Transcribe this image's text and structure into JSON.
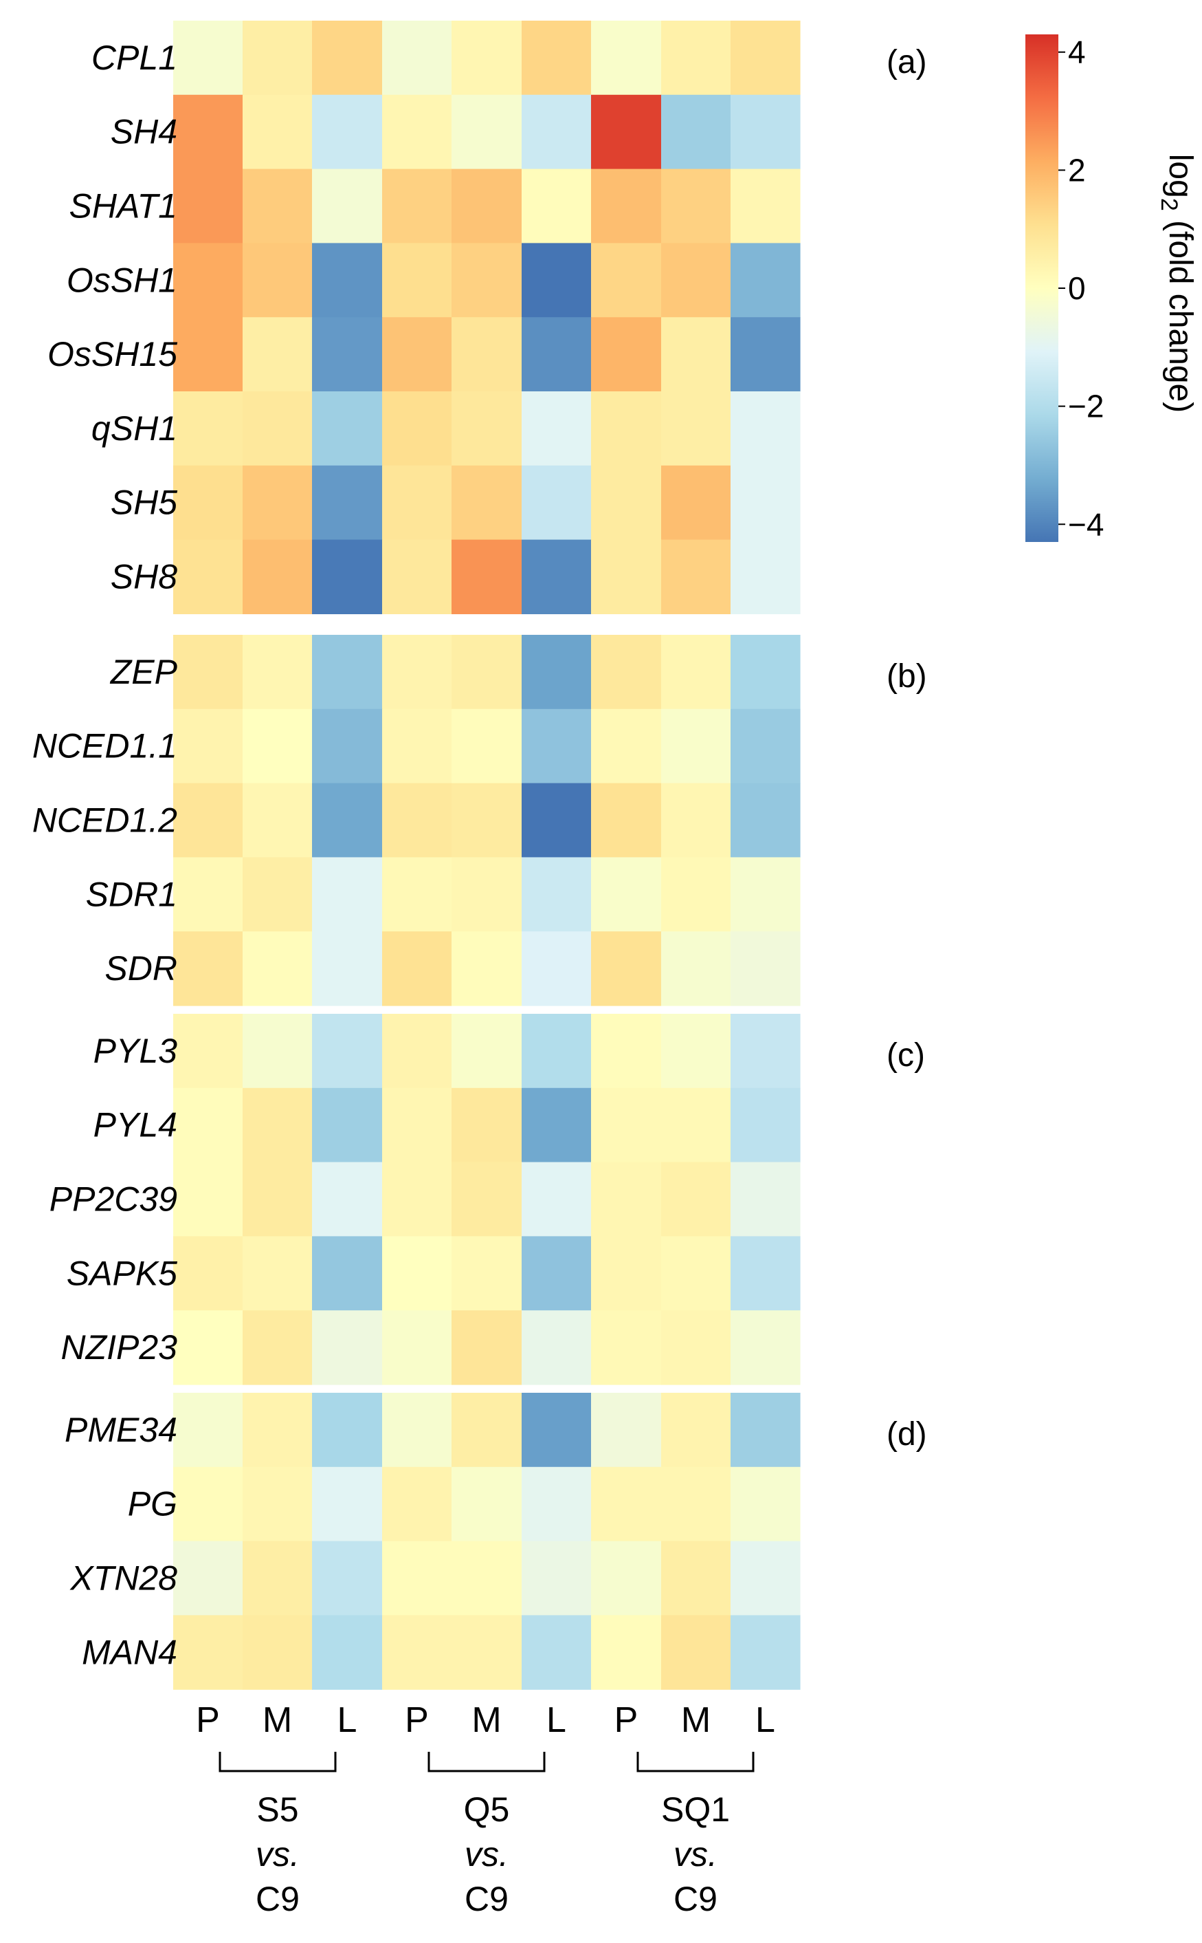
{
  "chart_data": {
    "type": "heatmap",
    "title": "",
    "columns": [
      "P",
      "M",
      "L",
      "P",
      "M",
      "L",
      "P",
      "M",
      "L"
    ],
    "groups": [
      {
        "label": "S5",
        "vs": "vs.",
        "ref": "C9"
      },
      {
        "label": "Q5",
        "vs": "vs.",
        "ref": "C9"
      },
      {
        "label": "SQ1",
        "vs": "vs.",
        "ref": "C9"
      }
    ],
    "panels": [
      {
        "label": "(a)",
        "rows": [
          {
            "gene": "CPL1",
            "values": [
              -0.3,
              0.6,
              1.3,
              -0.4,
              0.3,
              1.3,
              -0.2,
              0.5,
              1.0
            ]
          },
          {
            "gene": "SH4",
            "values": [
              2.5,
              0.5,
              -1.5,
              0.3,
              -0.3,
              -1.5,
              4.0,
              -2.4,
              -1.8
            ]
          },
          {
            "gene": "SHAT1",
            "values": [
              2.5,
              1.5,
              -0.4,
              1.4,
              1.7,
              0.1,
              1.8,
              1.4,
              0.3
            ]
          },
          {
            "gene": "OsSH1",
            "values": [
              2.2,
              1.6,
              -3.7,
              1.1,
              1.4,
              -4.3,
              1.3,
              1.6,
              -3.0
            ]
          },
          {
            "gene": "OsSH15",
            "values": [
              2.2,
              0.6,
              -3.6,
              1.7,
              0.9,
              -3.8,
              2.0,
              0.6,
              -3.7
            ]
          },
          {
            "gene": "qSH1",
            "values": [
              0.7,
              0.8,
              -2.4,
              1.1,
              0.8,
              -1.0,
              0.7,
              0.6,
              -1.0
            ]
          },
          {
            "gene": "SH5",
            "values": [
              1.1,
              1.6,
              -3.6,
              0.9,
              1.4,
              -1.6,
              0.7,
              1.8,
              -1.0
            ]
          },
          {
            "gene": "SH8",
            "values": [
              1.0,
              1.8,
              -4.2,
              0.8,
              2.6,
              -3.9,
              0.7,
              1.4,
              -1.0
            ]
          }
        ]
      },
      {
        "label": "(b)",
        "rows": [
          {
            "gene": "ZEP",
            "values": [
              0.8,
              0.3,
              -2.6,
              0.4,
              0.6,
              -3.4,
              0.8,
              0.3,
              -2.2
            ]
          },
          {
            "gene": "NCED1.1",
            "values": [
              0.4,
              0.0,
              -2.9,
              0.3,
              0.1,
              -2.7,
              0.2,
              -0.2,
              -2.5
            ]
          },
          {
            "gene": "NCED1.2",
            "values": [
              0.9,
              0.3,
              -3.3,
              0.8,
              0.7,
              -4.3,
              1.0,
              0.3,
              -2.6
            ]
          },
          {
            "gene": "SDR1",
            "values": [
              0.2,
              0.6,
              -1.0,
              0.2,
              0.3,
              -1.5,
              -0.2,
              0.2,
              -0.3
            ]
          },
          {
            "gene": "SDR",
            "values": [
              0.9,
              0.1,
              -1.0,
              1.0,
              0.1,
              -1.1,
              1.0,
              -0.3,
              -0.5
            ]
          }
        ]
      },
      {
        "label": "(c)",
        "rows": [
          {
            "gene": "PYL3",
            "values": [
              0.3,
              -0.3,
              -1.7,
              0.4,
              -0.2,
              -2.0,
              0.1,
              -0.2,
              -1.6
            ]
          },
          {
            "gene": "PYL4",
            "values": [
              0.1,
              0.7,
              -2.4,
              0.3,
              0.8,
              -3.3,
              0.2,
              0.2,
              -1.8
            ]
          },
          {
            "gene": "PP2C39",
            "values": [
              0.1,
              0.7,
              -1.0,
              0.3,
              0.7,
              -1.0,
              0.3,
              0.5,
              -0.8
            ]
          },
          {
            "gene": "SAPK5",
            "values": [
              0.5,
              0.3,
              -2.6,
              0.0,
              0.2,
              -2.7,
              0.3,
              0.2,
              -1.8
            ]
          },
          {
            "gene": "NZIP23",
            "values": [
              0.0,
              0.7,
              -0.6,
              -0.2,
              0.9,
              -0.8,
              0.2,
              0.3,
              -0.4
            ]
          }
        ]
      },
      {
        "label": "(d)",
        "rows": [
          {
            "gene": "PME34",
            "values": [
              -0.3,
              0.4,
              -2.2,
              -0.3,
              0.6,
              -3.5,
              -0.5,
              0.4,
              -2.4
            ]
          },
          {
            "gene": "PG",
            "values": [
              0.1,
              0.3,
              -1.0,
              0.4,
              -0.2,
              -0.9,
              0.3,
              0.3,
              -0.3
            ]
          },
          {
            "gene": "XTN28",
            "values": [
              -0.5,
              0.6,
              -1.7,
              0.1,
              0.1,
              -0.7,
              -0.3,
              0.6,
              -0.9
            ]
          },
          {
            "gene": "MAN4",
            "values": [
              0.6,
              0.7,
              -2.0,
              0.4,
              0.4,
              -1.9,
              0.1,
              0.9,
              -1.9
            ]
          }
        ]
      }
    ],
    "colorbar": {
      "title_prefix": "log",
      "title_sub": "2",
      "title_suffix": " (fold change)",
      "ticks": [
        "4",
        "2",
        "0",
        "−2",
        "−4"
      ],
      "tick_values": [
        4,
        2,
        0,
        -2,
        -4
      ],
      "range": [
        -4.3,
        4.3
      ],
      "colors": [
        "#4575b4",
        "#74add1",
        "#abd9e9",
        "#e0f3f8",
        "#ffffbf",
        "#fee090",
        "#fdae61",
        "#f46d43",
        "#d73027"
      ]
    }
  }
}
